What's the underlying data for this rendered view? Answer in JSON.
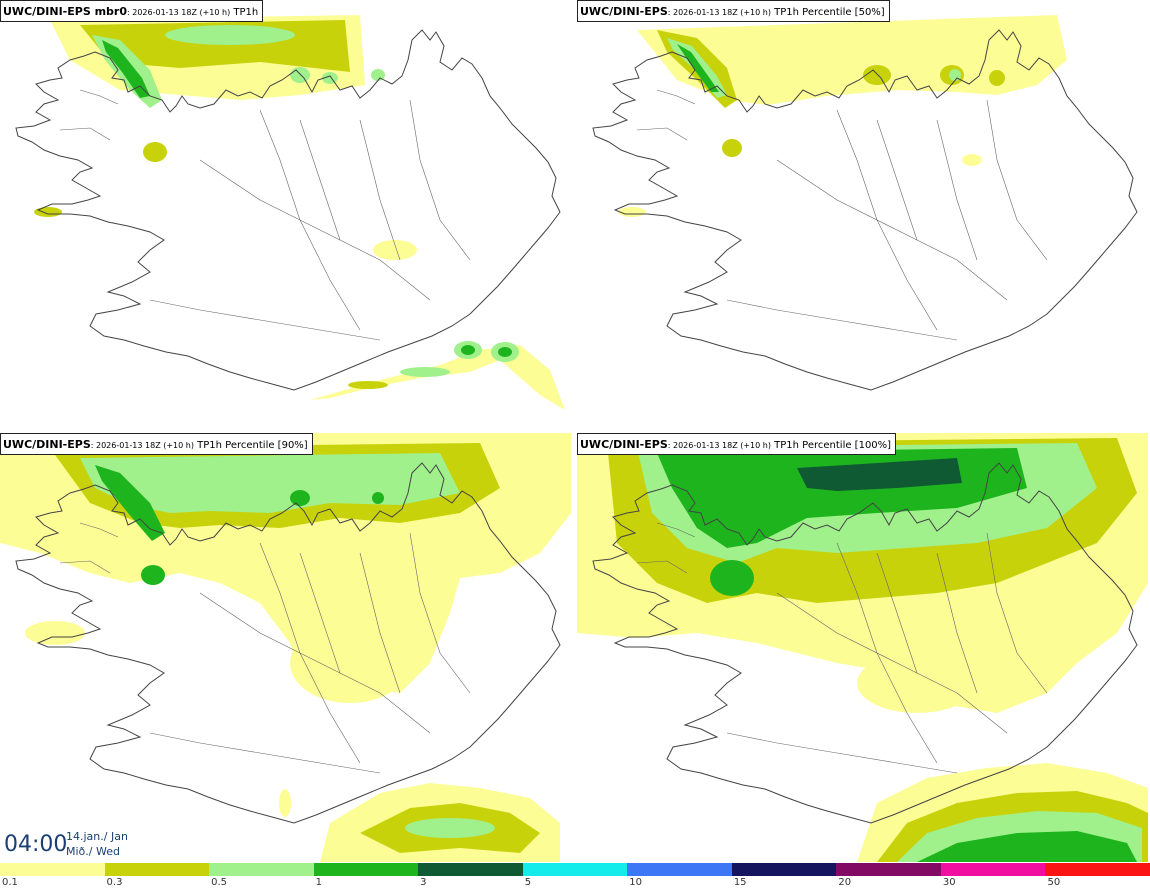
{
  "panels": [
    {
      "model": "UWC/DINI-EPS mbr0",
      "run": ": 2026-01-13 18Z (+10 h)",
      "param": " TP1h"
    },
    {
      "model": "UWC/DINI-EPS",
      "run": ": 2026-01-13 18Z (+10 h)",
      "param": " TP1h Percentile [50%]"
    },
    {
      "model": "UWC/DINI-EPS",
      "run": ": 2026-01-13 18Z (+10 h)",
      "param": " TP1h Percentile [90%]"
    },
    {
      "model": "UWC/DINI-EPS",
      "run": ": 2026-01-13 18Z (+10 h)",
      "param": " TP1h Percentile [100%]"
    }
  ],
  "time": {
    "clock": "04:00",
    "date_line1": "14.jan./ Jan",
    "date_line2": "Mið./ Wed"
  },
  "legend": {
    "labels": [
      "0.1",
      "0.3",
      "0.5",
      "1",
      "3",
      "5",
      "10",
      "15",
      "20",
      "30",
      "50"
    ],
    "colors": [
      "#fdfd96",
      "#c8d20a",
      "#a0f08c",
      "#1eb41e",
      "#0f5a32",
      "#14ebeb",
      "#3c78f5",
      "#14145f",
      "#820a64",
      "#f00fa0",
      "#fa1414"
    ]
  },
  "map_colors": {
    "level_0_1": "#fdfd96",
    "level_0_3": "#c8d20a",
    "level_0_5": "#a0f08c",
    "level_1": "#1eb41e",
    "coastline": "#444444"
  }
}
